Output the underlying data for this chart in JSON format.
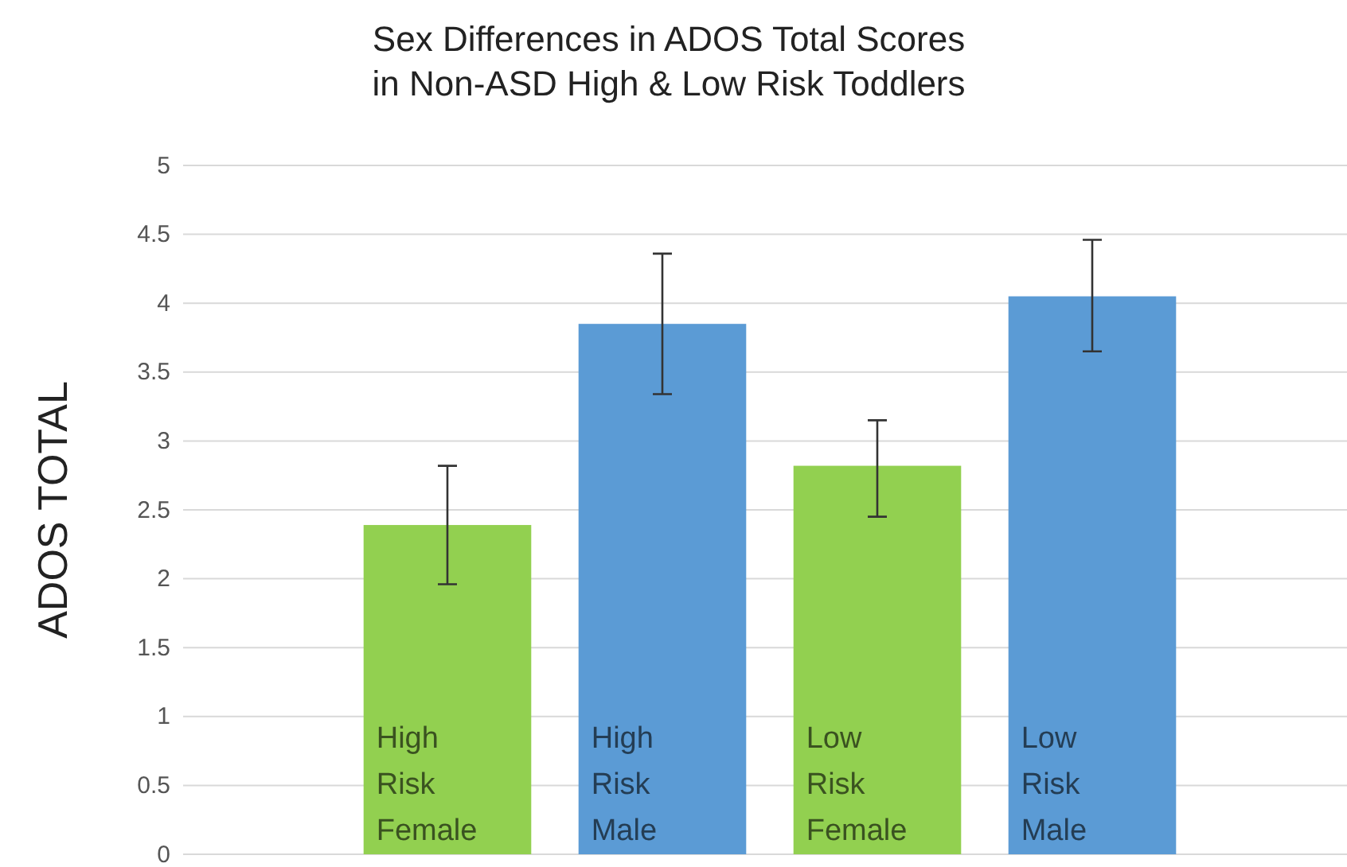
{
  "chart_data": {
    "type": "bar",
    "title": "Sex Differences in ADOS Total Scores in Non-ASD High & Low Risk Toddlers",
    "ylabel": "ADOS TOTAL",
    "categories": [
      "High Risk Female",
      "High Risk Male",
      "Low Risk Female",
      "Low Risk Male"
    ],
    "values": [
      2.39,
      3.85,
      2.82,
      4.05
    ],
    "colors": [
      "#92d050",
      "#5b9bd5",
      "#92d050",
      "#5b9bd5"
    ],
    "errors": [
      [
        1.96,
        2.82
      ],
      [
        3.34,
        4.36
      ],
      [
        2.45,
        3.15
      ],
      [
        3.65,
        4.46
      ]
    ],
    "ylim": [
      0,
      5
    ],
    "yticks": [
      0,
      0.5,
      1,
      1.5,
      2,
      2.5,
      3,
      3.5,
      4,
      4.5,
      5
    ],
    "grid": "y"
  }
}
